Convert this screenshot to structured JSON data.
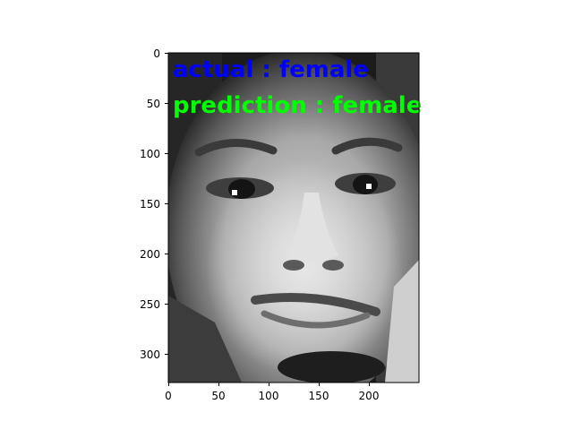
{
  "image": {
    "subject": "grayscale face photo",
    "width": 250,
    "height": 330
  },
  "annotations": {
    "actual": {
      "text": "actual : female",
      "color": "#0000ff"
    },
    "prediction": {
      "text": "prediction : female",
      "color": "#00ff00"
    }
  },
  "axes": {
    "x_ticks": [
      "0",
      "50",
      "100",
      "150",
      "200"
    ],
    "y_ticks": [
      "0",
      "50",
      "100",
      "150",
      "200",
      "250",
      "300"
    ]
  }
}
